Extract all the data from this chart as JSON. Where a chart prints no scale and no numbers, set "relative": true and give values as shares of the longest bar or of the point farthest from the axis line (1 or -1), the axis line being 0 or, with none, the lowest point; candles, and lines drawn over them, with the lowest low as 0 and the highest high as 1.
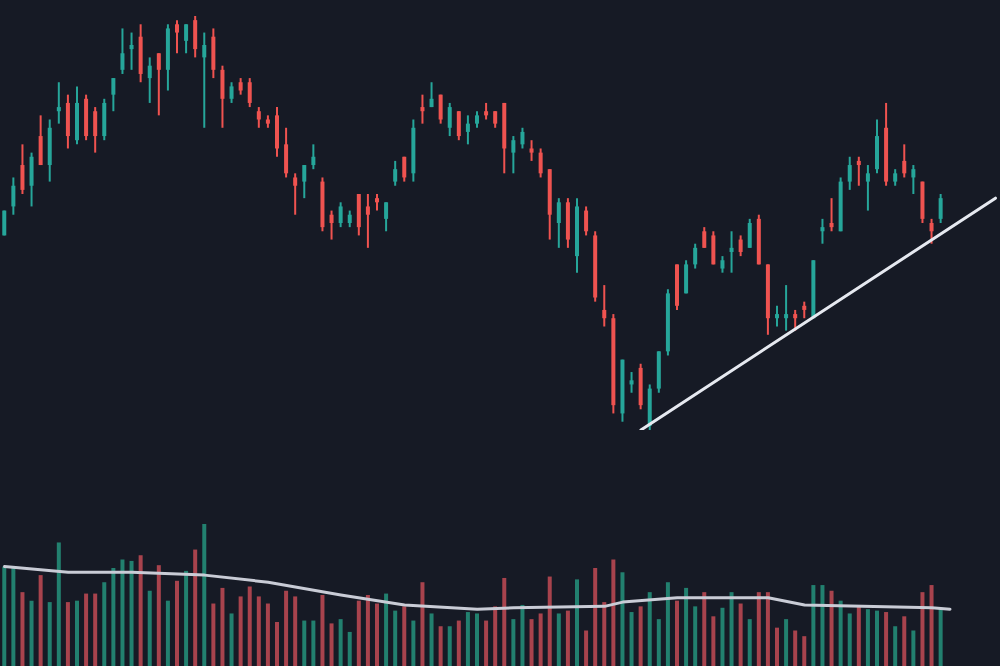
{
  "chart_data": [
    {
      "type": "candlestick",
      "relative": true,
      "categories": [
        null,
        null,
        null,
        null,
        null,
        null,
        null,
        null,
        null,
        null,
        null,
        null,
        null,
        null,
        null,
        null,
        null,
        null,
        null,
        null,
        null,
        null,
        null,
        null,
        null,
        null,
        null,
        null,
        null,
        null,
        null,
        null,
        null,
        null,
        null,
        null,
        null,
        null,
        null,
        null,
        null,
        null,
        null,
        null,
        null,
        null,
        null,
        null,
        null,
        null,
        null,
        null,
        null,
        null,
        null,
        null,
        null,
        null,
        null,
        null,
        null,
        null,
        null,
        null,
        null,
        null,
        null,
        null,
        null,
        null,
        null,
        null,
        null,
        null,
        null,
        null,
        null,
        null,
        null,
        null,
        null,
        null,
        null,
        null,
        null,
        null,
        null,
        null,
        null,
        null,
        null,
        null,
        null,
        null,
        null,
        null,
        null,
        null,
        null,
        null,
        null,
        null,
        null,
        null,
        null,
        null,
        null,
        null,
        null,
        null
      ],
      "ohlc": [
        [
          0.47,
          0.53,
          0.47,
          0.53
        ],
        [
          0.54,
          0.61,
          0.52,
          0.59
        ],
        [
          0.64,
          0.69,
          0.57,
          0.58
        ],
        [
          0.59,
          0.67,
          0.54,
          0.66
        ],
        [
          0.71,
          0.76,
          0.64,
          0.64
        ],
        [
          0.64,
          0.75,
          0.6,
          0.73
        ],
        [
          0.77,
          0.84,
          0.74,
          0.78
        ],
        [
          0.79,
          0.81,
          0.68,
          0.71
        ],
        [
          0.7,
          0.83,
          0.69,
          0.79
        ],
        [
          0.8,
          0.81,
          0.7,
          0.71
        ],
        [
          0.77,
          0.78,
          0.67,
          0.71
        ],
        [
          0.71,
          0.8,
          0.7,
          0.79
        ],
        [
          0.81,
          0.85,
          0.77,
          0.85
        ],
        [
          0.87,
          0.97,
          0.86,
          0.91
        ],
        [
          0.92,
          0.96,
          0.87,
          0.93
        ],
        [
          0.95,
          0.98,
          0.84,
          0.86
        ],
        [
          0.85,
          0.9,
          0.79,
          0.88
        ],
        [
          0.91,
          0.91,
          0.76,
          0.87
        ],
        [
          0.87,
          0.98,
          0.82,
          0.97
        ],
        [
          0.98,
          0.99,
          0.91,
          0.96
        ],
        [
          0.94,
          0.98,
          0.91,
          0.98
        ],
        [
          0.99,
          1,
          0.9,
          0.92
        ],
        [
          0.9,
          0.96,
          0.73,
          0.93
        ],
        [
          0.95,
          0.97,
          0.85,
          0.87
        ],
        [
          0.87,
          0.88,
          0.73,
          0.8
        ],
        [
          0.8,
          0.84,
          0.79,
          0.83
        ],
        [
          0.84,
          0.85,
          0.81,
          0.82
        ],
        [
          0.84,
          0.85,
          0.78,
          0.79
        ],
        [
          0.77,
          0.78,
          0.73,
          0.75
        ],
        [
          0.75,
          0.76,
          0.73,
          0.74
        ],
        [
          0.76,
          0.78,
          0.66,
          0.68
        ],
        [
          0.69,
          0.73,
          0.61,
          0.62
        ],
        [
          0.61,
          0.62,
          0.52,
          0.59
        ],
        [
          0.6,
          0.64,
          0.56,
          0.64
        ],
        [
          0.64,
          0.69,
          0.63,
          0.66
        ],
        [
          0.6,
          0.61,
          0.48,
          0.49
        ],
        [
          0.52,
          0.53,
          0.46,
          0.5
        ],
        [
          0.5,
          0.55,
          0.49,
          0.54
        ],
        [
          0.5,
          0.53,
          0.49,
          0.52
        ],
        [
          0.57,
          0.57,
          0.47,
          0.49
        ],
        [
          0.54,
          0.57,
          0.44,
          0.52
        ],
        [
          0.56,
          0.57,
          0.53,
          0.55
        ],
        [
          0.51,
          0.55,
          0.48,
          0.55
        ],
        [
          0.6,
          0.65,
          0.59,
          0.63
        ],
        [
          0.66,
          0.66,
          0.6,
          0.61
        ],
        [
          0.62,
          0.75,
          0.6,
          0.73
        ],
        [
          0.78,
          0.81,
          0.74,
          0.77
        ],
        [
          0.78,
          0.84,
          0.78,
          0.8
        ],
        [
          0.81,
          0.81,
          0.74,
          0.75
        ],
        [
          0.73,
          0.79,
          0.71,
          0.78
        ],
        [
          0.77,
          0.77,
          0.7,
          0.71
        ],
        [
          0.72,
          0.76,
          0.69,
          0.74
        ],
        [
          0.74,
          0.77,
          0.73,
          0.76
        ],
        [
          0.77,
          0.79,
          0.75,
          0.76
        ],
        [
          0.77,
          0.77,
          0.73,
          0.74
        ],
        [
          0.79,
          0.79,
          0.62,
          0.68
        ],
        [
          0.67,
          0.71,
          0.62,
          0.7
        ],
        [
          0.69,
          0.73,
          0.68,
          0.72
        ],
        [
          0.68,
          0.7,
          0.65,
          0.67
        ],
        [
          0.67,
          0.68,
          0.61,
          0.62
        ],
        [
          0.63,
          0.63,
          0.46,
          0.52
        ],
        [
          0.5,
          0.56,
          0.44,
          0.55
        ],
        [
          0.55,
          0.56,
          0.44,
          0.46
        ],
        [
          0.42,
          0.56,
          0.38,
          0.54
        ],
        [
          0.53,
          0.54,
          0.47,
          0.48
        ],
        [
          0.47,
          0.48,
          0.31,
          0.32
        ],
        [
          0.29,
          0.35,
          0.25,
          0.27
        ],
        [
          0.27,
          0.28,
          0.04,
          0.06
        ],
        [
          0.04,
          0.17,
          0.02,
          0.17
        ],
        [
          0.11,
          0.14,
          0.09,
          0.12
        ],
        [
          0.15,
          0.16,
          0.05,
          0.06
        ],
        [
          0.01,
          0.11,
          0,
          0.1
        ],
        [
          0.1,
          0.19,
          0.09,
          0.19
        ],
        [
          0.19,
          0.34,
          0.18,
          0.33
        ],
        [
          0.4,
          0.4,
          0.29,
          0.3
        ],
        [
          0.33,
          0.41,
          0.33,
          0.4
        ],
        [
          0.4,
          0.45,
          0.39,
          0.44
        ],
        [
          0.48,
          0.49,
          0.44,
          0.44
        ],
        [
          0.47,
          0.48,
          0.4,
          0.4
        ],
        [
          0.39,
          0.42,
          0.38,
          0.41
        ],
        [
          0.43,
          0.48,
          0.38,
          0.44
        ],
        [
          0.46,
          0.47,
          0.42,
          0.43
        ],
        [
          0.44,
          0.51,
          0.44,
          0.5
        ],
        [
          0.51,
          0.52,
          0.4,
          0.4
        ],
        [
          0.4,
          0.4,
          0.23,
          0.27
        ],
        [
          0.27,
          0.3,
          0.25,
          0.28
        ],
        [
          0.27,
          0.35,
          0.24,
          0.28
        ],
        [
          0.28,
          0.29,
          0.24,
          0.27
        ],
        [
          0.3,
          0.31,
          0.27,
          0.29
        ],
        [
          0.27,
          0.41,
          0.27,
          0.41
        ],
        [
          0.48,
          0.51,
          0.45,
          0.49
        ],
        [
          0.5,
          0.56,
          0.48,
          0.49
        ],
        [
          0.48,
          0.61,
          0.48,
          0.6
        ],
        [
          0.6,
          0.66,
          0.58,
          0.64
        ],
        [
          0.65,
          0.66,
          0.59,
          0.64
        ],
        [
          0.6,
          0.64,
          0.53,
          0.62
        ],
        [
          0.63,
          0.75,
          0.62,
          0.71
        ],
        [
          0.73,
          0.79,
          0.59,
          0.6
        ],
        [
          0.6,
          0.63,
          0.59,
          0.62
        ],
        [
          0.65,
          0.69,
          0.61,
          0.62
        ],
        [
          0.61,
          0.64,
          0.57,
          0.63
        ],
        [
          0.6,
          0.6,
          0.5,
          0.51
        ],
        [
          0.5,
          0.51,
          0.45,
          0.48
        ],
        [
          0.51,
          0.57,
          0.5,
          0.56
        ],
        null,
        null,
        null,
        null,
        null,
        null
      ],
      "colors": [
        "#26a69a",
        "#26a69a",
        "#ef5350",
        "#26a69a",
        "#ef5350",
        "#26a69a",
        "#26a69a",
        "#ef5350",
        "#26a69a",
        "#ef5350",
        "#ef5350",
        "#26a69a",
        "#26a69a",
        "#26a69a",
        "#26a69a",
        "#ef5350",
        "#26a69a",
        "#ef5350",
        "#26a69a",
        "#ef5350",
        "#26a69a",
        "#ef5350",
        "#26a69a",
        "#ef5350",
        "#ef5350",
        "#26a69a",
        "#ef5350",
        "#ef5350",
        "#ef5350",
        "#ef5350",
        "#ef5350",
        "#ef5350",
        "#ef5350",
        "#26a69a",
        "#26a69a",
        "#ef5350",
        "#ef5350",
        "#26a69a",
        "#26a69a",
        "#ef5350",
        "#ef5350",
        "#ef5350",
        "#26a69a",
        "#26a69a",
        "#ef5350",
        "#26a69a",
        "#ef5350",
        "#26a69a",
        "#ef5350",
        "#26a69a",
        "#ef5350",
        "#26a69a",
        "#26a69a",
        "#ef5350",
        "#ef5350",
        "#ef5350",
        "#26a69a",
        "#26a69a",
        "#ef5350",
        "#ef5350",
        "#ef5350",
        "#26a69a",
        "#ef5350",
        "#26a69a",
        "#ef5350",
        "#ef5350",
        "#ef5350",
        "#ef5350",
        "#26a69a",
        "#26a69a",
        "#ef5350",
        "#26a69a",
        "#26a69a",
        "#26a69a",
        "#ef5350",
        "#26a69a",
        "#26a69a",
        "#ef5350",
        "#ef5350",
        "#26a69a",
        "#26a69a",
        "#ef5350",
        "#26a69a",
        "#ef5350",
        "#ef5350",
        "#26a69a",
        "#26a69a",
        "#ef5350",
        "#ef5350",
        "#26a69a",
        "#26a69a",
        "#ef5350",
        "#26a69a",
        "#26a69a",
        "#ef5350",
        "#26a69a",
        "#26a69a",
        "#ef5350",
        "#26a69a",
        "#ef5350",
        "#26a69a",
        "#ef5350",
        "#ef5350",
        "#26a69a",
        null,
        null,
        null,
        null,
        null,
        null
      ],
      "series": [
        {
          "type": "line",
          "color": "#e6e9f0",
          "values": [
            null,
            null,
            null,
            null,
            null,
            null,
            null,
            null,
            null,
            null,
            null,
            null,
            null,
            null,
            null,
            null,
            null,
            null,
            null,
            null,
            null,
            null,
            null,
            null,
            null,
            null,
            null,
            null,
            null,
            null,
            null,
            null,
            null,
            null,
            null,
            null,
            null,
            null,
            null,
            null,
            null,
            null,
            null,
            null,
            null,
            null,
            null,
            null,
            null,
            null,
            null,
            null,
            null,
            null,
            null,
            null,
            null,
            null,
            null,
            null,
            null,
            null,
            null,
            null,
            null,
            null,
            null,
            null,
            null,
            null,
            0,
            null,
            null,
            null,
            null,
            null,
            null,
            null,
            null,
            null,
            null,
            null,
            null,
            null,
            null,
            null,
            null,
            null,
            null,
            null,
            null,
            null,
            null,
            null,
            null,
            null,
            null,
            null,
            null,
            null,
            null,
            null,
            null,
            null,
            null,
            null,
            null,
            null,
            null,
            0.56
          ]
        }
      ]
    },
    {
      "type": "bar",
      "relative": true,
      "categories": [
        null,
        null,
        null,
        null,
        null,
        null,
        null,
        null,
        null,
        null,
        null,
        null,
        null,
        null,
        null,
        null,
        null,
        null,
        null,
        null,
        null,
        null,
        null,
        null,
        null,
        null,
        null,
        null,
        null,
        null,
        null,
        null,
        null,
        null,
        null,
        null,
        null,
        null,
        null,
        null,
        null,
        null,
        null,
        null,
        null,
        null,
        null,
        null,
        null,
        null,
        null,
        null,
        null,
        null,
        null,
        null,
        null,
        null,
        null,
        null,
        null,
        null,
        null,
        null,
        null,
        null,
        null,
        null,
        null,
        null,
        null,
        null,
        null,
        null,
        null,
        null,
        null,
        null,
        null,
        null,
        null,
        null,
        null,
        null,
        null,
        null,
        null,
        null,
        null,
        null,
        null,
        null,
        null,
        null,
        null,
        null,
        null,
        null,
        null,
        null,
        null,
        null,
        null,
        null,
        null,
        null,
        null,
        null,
        null,
        null
      ],
      "series": [
        {
          "type": "bar",
          "values": [
            0.7,
            0.7,
            0.52,
            0.46,
            0.64,
            0.45,
            0.87,
            0.45,
            0.46,
            0.51,
            0.51,
            0.59,
            0.69,
            0.75,
            0.74,
            0.78,
            0.53,
            0.71,
            0.46,
            0.6,
            0.67,
            0.82,
            1,
            0.44,
            0.55,
            0.37,
            0.49,
            0.56,
            0.49,
            0.44,
            0.31,
            0.53,
            0.49,
            0.32,
            0.32,
            0.5,
            0.3,
            0.33,
            0.24,
            0.46,
            0.5,
            0.44,
            0.51,
            0.39,
            0.42,
            0.32,
            0.59,
            0.37,
            0.28,
            0.28,
            0.32,
            0.38,
            0.37,
            0.32,
            0.42,
            0.62,
            0.33,
            0.43,
            0.33,
            0.37,
            0.63,
            0.37,
            0.39,
            0.61,
            0.25,
            0.69,
            0.45,
            0.75,
            0.66,
            0.38,
            0.42,
            0.52,
            0.33,
            0.59,
            0.46,
            0.55,
            0.42,
            0.52,
            0.35,
            0.41,
            0.52,
            0.44,
            0.33,
            0.52,
            0.52,
            0.27,
            0.33,
            0.25,
            0.21,
            0.57,
            0.57,
            0.53,
            0.46,
            0.37,
            0.42,
            0.4,
            0.39,
            0.38,
            0.28,
            0.35,
            0.25,
            0.52,
            0.57,
            0.41,
            null,
            null,
            null,
            null,
            null,
            null
          ],
          "colors": [
            "#22806f",
            "#22806f",
            "#a8434d",
            "#22806f",
            "#a8434d",
            "#22806f",
            "#22806f",
            "#a8434d",
            "#22806f",
            "#a8434d",
            "#a8434d",
            "#22806f",
            "#22806f",
            "#22806f",
            "#22806f",
            "#a8434d",
            "#22806f",
            "#a8434d",
            "#22806f",
            "#a8434d",
            "#22806f",
            "#a8434d",
            "#22806f",
            "#a8434d",
            "#a8434d",
            "#22806f",
            "#a8434d",
            "#a8434d",
            "#a8434d",
            "#a8434d",
            "#a8434d",
            "#a8434d",
            "#a8434d",
            "#22806f",
            "#22806f",
            "#a8434d",
            "#a8434d",
            "#22806f",
            "#22806f",
            "#a8434d",
            "#a8434d",
            "#a8434d",
            "#22806f",
            "#22806f",
            "#a8434d",
            "#22806f",
            "#a8434d",
            "#22806f",
            "#a8434d",
            "#22806f",
            "#a8434d",
            "#22806f",
            "#22806f",
            "#a8434d",
            "#a8434d",
            "#a8434d",
            "#22806f",
            "#22806f",
            "#a8434d",
            "#a8434d",
            "#a8434d",
            "#22806f",
            "#a8434d",
            "#22806f",
            "#a8434d",
            "#a8434d",
            "#a8434d",
            "#a8434d",
            "#22806f",
            "#22806f",
            "#a8434d",
            "#22806f",
            "#22806f",
            "#22806f",
            "#a8434d",
            "#22806f",
            "#22806f",
            "#a8434d",
            "#a8434d",
            "#22806f",
            "#22806f",
            "#a8434d",
            "#22806f",
            "#a8434d",
            "#a8434d",
            "#a8434d",
            "#22806f",
            "#a8434d",
            "#a8434d",
            "#22806f",
            "#22806f",
            "#a8434d",
            "#22806f",
            "#22806f",
            "#a8434d",
            "#22806f",
            "#22806f",
            "#a8434d",
            "#22806f",
            "#a8434d",
            "#22806f",
            "#a8434d",
            "#a8434d",
            "#22806f",
            null,
            null,
            null,
            null,
            null,
            null
          ]
        },
        {
          "type": "line",
          "color": "#c9ccd6",
          "values": [
            0.7,
            null,
            null,
            null,
            null,
            null,
            null,
            0.66,
            null,
            null,
            null,
            null,
            null,
            null,
            0.66,
            null,
            null,
            null,
            null,
            null,
            null,
            null,
            0.64,
            null,
            null,
            null,
            null,
            null,
            null,
            0.59,
            null,
            null,
            null,
            null,
            null,
            null,
            null,
            0.5,
            null,
            null,
            null,
            null,
            null,
            null,
            0.43,
            null,
            null,
            null,
            null,
            null,
            null,
            null,
            0.4,
            null,
            null,
            null,
            0.41,
            null,
            null,
            null,
            null,
            null,
            null,
            null,
            null,
            null,
            0.42,
            null,
            0.45,
            null,
            null,
            null,
            null,
            null,
            0.48,
            null,
            null,
            null,
            null,
            null,
            null,
            null,
            null,
            null,
            0.48,
            null,
            null,
            null,
            0.43,
            null,
            null,
            null,
            null,
            null,
            null,
            null,
            null,
            null,
            null,
            null,
            null,
            null,
            0.41,
            null,
            0.4,
            null,
            null,
            null,
            null,
            null
          ]
        }
      ]
    }
  ]
}
